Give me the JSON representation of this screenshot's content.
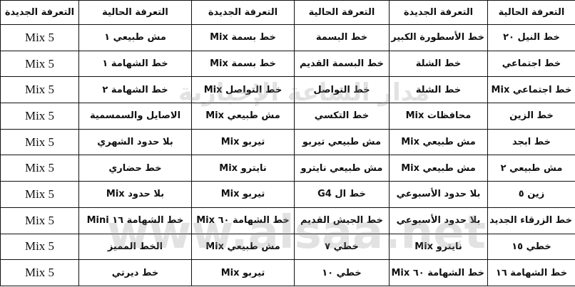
{
  "table": {
    "header": [
      "التعرفة الحالية",
      "التعرفة الجديدة",
      "التعرفة الحالية",
      "التعرفة الجديدة",
      "التعرفة الحالية",
      "التعرفة الجديدة"
    ],
    "rows": [
      [
        "خط النيل ٢٠",
        "خط الأسطورة الكبير",
        "خط البسمة",
        "خط بسمة Mix",
        "مش طبيعي ١",
        "Mix 5"
      ],
      [
        "خط اجتماعي",
        "خط الشلة",
        "خط البسمة القديم",
        "خط بسمة Mix",
        "خط الشهامة ١",
        "Mix 5"
      ],
      [
        "خط اجتماعي Mix",
        "خط الشلة",
        "خط التواصل",
        "خط التواصل Mix",
        "خط الشهامة ٢",
        "Mix 5"
      ],
      [
        "خط الزين",
        "محافظات Mix",
        "خط التكسي",
        "مش طبيعي Mix",
        "الاصايل والسمسمية",
        "Mix 5"
      ],
      [
        "خط ابجد",
        "مش طبيعي Mix",
        "مش طبيعي تيربو",
        "تيربو Mix",
        "بلا حدود الشهري",
        "Mix 5"
      ],
      [
        "مش طبيعي ٢",
        "مش طبيعي Mix",
        "مش طبيعي نايترو",
        "نايترو Mix",
        "خط حضاري",
        "Mix 5"
      ],
      [
        "زين ٥",
        "بلا حدود الأسبوعي",
        "خط ال G4",
        "تيربو Mix",
        "بلا حدود Mix",
        "Mix 5"
      ],
      [
        "خط الزرقاء الجديد",
        "بلا حدود الأسبوعي",
        "خط الجيش القديم",
        "خط الشهامة ٦٠ Mix",
        "خط الشهامة ١٦ Mini",
        "Mix 5"
      ],
      [
        "خطي ١٥",
        "نايترو Mix",
        "خطي ٧",
        "مش طبيعي Mix",
        "الخط المميز",
        "Mix 5"
      ],
      [
        "خط الشهامة ١٦",
        "خط الشهامة ٦٠ Mix",
        "خطي ١٠",
        "تيربو Mix",
        "خط ديرتي",
        "Mix 5"
      ]
    ]
  },
  "watermark": {
    "site": "www.alsaa.net",
    "name": "مدار الساعة الإخبارية"
  }
}
